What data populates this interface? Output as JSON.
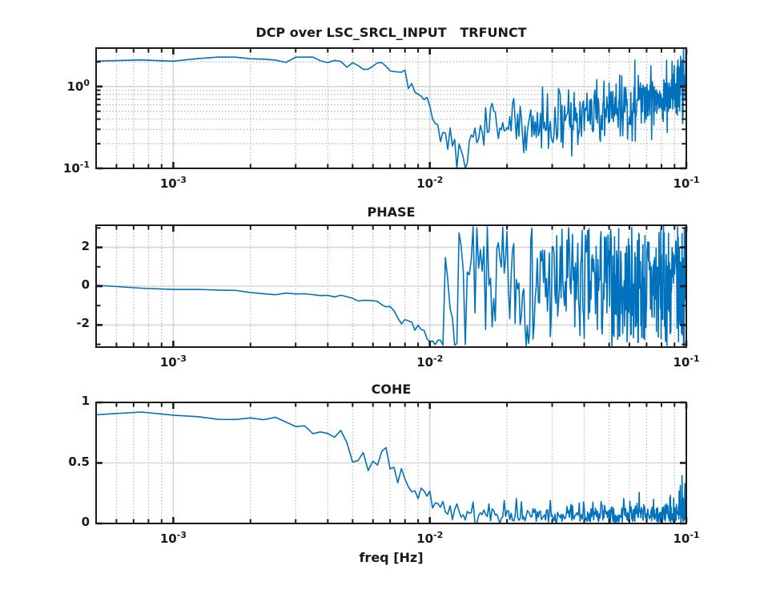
{
  "figure": {
    "kind": "matlab-style transfer function figure, 3 stacked subplots",
    "background": "#ffffff"
  },
  "styles": {
    "line_color": "#0072bd",
    "axes_color": "#1a1a1a",
    "grid_major_color": "#d6d6d6",
    "grid_minor_color": "#b3b3b3",
    "text_color": "#1a1a1a"
  },
  "xlabel": "freq [Hz]",
  "x_axis": {
    "scale": "log",
    "lim": [
      0.0005,
      0.1
    ],
    "major_ticks": [
      0.001,
      0.01,
      0.1
    ],
    "tick_labels": [
      {
        "v": 0.001,
        "base": "10",
        "exp": "-3"
      },
      {
        "v": 0.01,
        "base": "10",
        "exp": "-2"
      },
      {
        "v": 0.1,
        "base": "10",
        "exp": "-1"
      }
    ]
  },
  "chart_data": [
    {
      "id": "magnitude",
      "type": "line",
      "title": "DCP over LSC_SRCL_INPUT   TRFUNCT",
      "xscale": "log",
      "yscale": "log",
      "xlim": [
        0.0005,
        0.1
      ],
      "ylim": [
        0.1,
        2.95
      ],
      "y_tick_labels": [
        {
          "v": 1,
          "base": "10",
          "exp": "0"
        },
        {
          "v": 0.1,
          "base": "10",
          "exp": "-1"
        }
      ],
      "y_ticks_major": [
        0.1,
        1
      ],
      "y_ticks_minor": [
        0.2,
        0.3,
        0.4,
        0.5,
        0.6,
        0.7,
        0.8,
        0.9,
        2
      ],
      "y_grid_major": [
        1
      ],
      "y_grid_minor": [
        0.2,
        0.3,
        0.4,
        0.5,
        0.6,
        0.7,
        0.8,
        0.9,
        2
      ],
      "series": {
        "name": "transfer function magnitude",
        "color": "#0072bd",
        "df": 0.00025,
        "seed": 42,
        "anchors_f": [
          0.0005,
          0.001,
          0.00145,
          0.0019,
          0.0022,
          0.0026,
          0.003,
          0.0035,
          0.004,
          0.0044,
          0.0048,
          0.0052,
          0.0056,
          0.006,
          0.0064,
          0.0068,
          0.0072,
          0.0076,
          0.008,
          0.0086,
          0.0092,
          0.01,
          0.011,
          0.012,
          0.0135,
          0.0155,
          0.018,
          0.02,
          0.023,
          0.027,
          0.032,
          0.04,
          0.05,
          0.065,
          0.08,
          0.1
        ],
        "anchors_v": [
          2.1,
          2.15,
          2.35,
          2.15,
          2.3,
          2.1,
          2.25,
          2.2,
          1.9,
          2.1,
          1.75,
          1.9,
          1.6,
          1.75,
          2.05,
          1.8,
          1.45,
          1.6,
          1.25,
          0.95,
          0.75,
          0.52,
          0.32,
          0.22,
          0.15,
          0.25,
          0.35,
          0.42,
          0.3,
          0.32,
          0.38,
          0.4,
          0.5,
          0.65,
          0.8,
          1.0
        ],
        "noise_log10_sigma": [
          [
            0.007,
            0.012
          ],
          [
            0.0105,
            0.05
          ],
          [
            0.013,
            0.12
          ],
          [
            0.02,
            0.16
          ],
          [
            0.101,
            0.2
          ]
        ]
      }
    },
    {
      "id": "phase",
      "type": "line",
      "title": "PHASE",
      "xscale": "log",
      "yscale": "linear",
      "xlim": [
        0.0005,
        0.1
      ],
      "ylim": [
        -3.142,
        3.142
      ],
      "y_tick_labels": [
        {
          "v": 2,
          "label": "2"
        },
        {
          "v": 0,
          "label": "0"
        },
        {
          "v": -2,
          "label": "-2"
        }
      ],
      "y_ticks_major": [
        -2,
        0,
        2
      ],
      "y_ticks_minor": [
        -3,
        -1,
        1,
        3
      ],
      "y_grid_major": [
        -2,
        0,
        2
      ],
      "y_grid_minor": [],
      "series": {
        "name": "transfer function phase [rad]",
        "color": "#0072bd",
        "df": 0.00025,
        "seed": 7,
        "anchors_f": [
          0.0005,
          0.001,
          0.0015,
          0.002,
          0.0025,
          0.003,
          0.0035,
          0.004,
          0.0045,
          0.005,
          0.0055,
          0.006,
          0.0065,
          0.007,
          0.0074,
          0.0077,
          0.008,
          0.0085,
          0.009,
          0.0095,
          0.01,
          0.0103,
          0.0108,
          0.0112,
          0.1
        ],
        "anchors_v": [
          -0.06,
          -0.13,
          -0.2,
          -0.3,
          -0.38,
          -0.45,
          -0.42,
          -0.55,
          -0.5,
          -0.65,
          -0.78,
          -0.7,
          -0.95,
          -1.1,
          -1.35,
          -2.05,
          -1.75,
          -1.95,
          -2.1,
          -2.4,
          -2.95,
          -2.6,
          -3.05,
          -2.8,
          -2.8
        ],
        "noise_sigma": [
          [
            0.008,
            0.04
          ],
          [
            0.01,
            0.12
          ],
          [
            0.0115,
            0.3
          ]
        ],
        "uniform_from": 0.0115,
        "uniform_range": [
          -3.1,
          3.1
        ]
      }
    },
    {
      "id": "coherence",
      "type": "line",
      "title": "COHE",
      "xscale": "log",
      "yscale": "linear",
      "xlim": [
        0.0005,
        0.1
      ],
      "ylim": [
        0,
        1
      ],
      "y_tick_labels": [
        {
          "v": 1,
          "label": "1"
        },
        {
          "v": 0.5,
          "label": "0.5"
        },
        {
          "v": 0,
          "label": "0"
        }
      ],
      "y_ticks_major": [
        0,
        0.5,
        1
      ],
      "y_ticks_minor": [],
      "y_grid_major": [
        0.5
      ],
      "y_grid_minor": [],
      "series": {
        "name": "coherence",
        "color": "#0072bd",
        "df": 0.00025,
        "seed": 2024,
        "anchors_f": [
          0.0005,
          0.0007,
          0.001,
          0.0013,
          0.0018,
          0.0023,
          0.0027,
          0.003,
          0.0033,
          0.0037,
          0.0041,
          0.0045,
          0.0048,
          0.0051,
          0.0055,
          0.0059,
          0.0063,
          0.0067,
          0.0071,
          0.0075,
          0.0079,
          0.0084,
          0.009,
          0.0096,
          0.0102,
          0.011,
          0.012,
          0.0135,
          0.016,
          0.02,
          0.03,
          0.05,
          0.1
        ],
        "anchors_v": [
          0.9,
          0.93,
          0.9,
          0.87,
          0.855,
          0.87,
          0.88,
          0.8,
          0.77,
          0.8,
          0.73,
          0.77,
          0.62,
          0.53,
          0.6,
          0.47,
          0.55,
          0.62,
          0.5,
          0.35,
          0.45,
          0.3,
          0.25,
          0.33,
          0.18,
          0.14,
          0.1,
          0.08,
          0.07,
          0.06,
          0.06,
          0.07,
          0.07
        ],
        "noise_sigma": [
          [
            0.003,
            0.01
          ],
          [
            0.005,
            0.025
          ],
          [
            0.008,
            0.045
          ],
          [
            0.013,
            0.04
          ]
        ],
        "tail_from": 0.013,
        "tail": {
          "base_sigma": 0.05,
          "spike_prob": 0.05,
          "spike_scale": 0.13
        }
      }
    }
  ]
}
